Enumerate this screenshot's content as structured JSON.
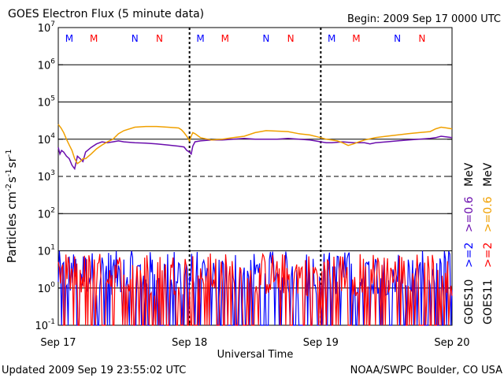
{
  "chart_data": {
    "type": "line",
    "title": "GOES Electron Flux (5 minute data)",
    "begin_label": "Begin: 2009 Sep 17 0000 UTC",
    "xlabel": "Universal Time",
    "ylabel_html": "Particles cm-2 s-1 sr-1",
    "ylabel_parts": {
      "base": "Particles cm",
      "e1": "-2",
      "s": "s",
      "e2": "-1",
      "sr": "sr",
      "e3": "-1"
    },
    "yscale": "log",
    "ylim": [
      0.1,
      10000000
    ],
    "xlim": [
      0,
      72
    ],
    "x_unit": "hours since 2009 Sep 17 0000 UTC",
    "y_ticks": [
      {
        "base": "10",
        "exp": "7",
        "value": 10000000
      },
      {
        "base": "10",
        "exp": "6",
        "value": 1000000
      },
      {
        "base": "10",
        "exp": "5",
        "value": 100000
      },
      {
        "base": "10",
        "exp": "4",
        "value": 10000
      },
      {
        "base": "10",
        "exp": "3",
        "value": 1000
      },
      {
        "base": "10",
        "exp": "2",
        "value": 100
      },
      {
        "base": "10",
        "exp": "1",
        "value": 10
      },
      {
        "base": "10",
        "exp": "0",
        "value": 1
      },
      {
        "base": "10",
        "exp": "-1",
        "value": 0.1
      }
    ],
    "x_ticks": [
      {
        "label": "Sep 17",
        "x": 0
      },
      {
        "label": "Sep 18",
        "x": 24
      },
      {
        "label": "Sep 19",
        "x": 48
      },
      {
        "label": "Sep 20",
        "x": 72
      }
    ],
    "dashed_thresholds": [
      1000
    ],
    "local_time_markers": [
      {
        "label": "M",
        "x": 2,
        "color": "#0000ff"
      },
      {
        "label": "M",
        "x": 6.5,
        "color": "#ff0000"
      },
      {
        "label": "N",
        "x": 14,
        "color": "#0000ff"
      },
      {
        "label": "N",
        "x": 18.5,
        "color": "#ff0000"
      },
      {
        "label": "M",
        "x": 26,
        "color": "#0000ff"
      },
      {
        "label": "M",
        "x": 30.5,
        "color": "#ff0000"
      },
      {
        "label": "N",
        "x": 38,
        "color": "#0000ff"
      },
      {
        "label": "N",
        "x": 42.5,
        "color": "#ff0000"
      },
      {
        "label": "M",
        "x": 50,
        "color": "#0000ff"
      },
      {
        "label": "M",
        "x": 54.5,
        "color": "#ff0000"
      },
      {
        "label": "N",
        "x": 62,
        "color": "#0000ff"
      },
      {
        "label": "N",
        "x": 66.5,
        "color": "#ff0000"
      }
    ],
    "legend": {
      "placement": "right",
      "channels": [
        {
          "text": ">=2 MeV",
          "series": "GOES10 >=2 MeV",
          "color": "#0000ff"
        },
        {
          "text": ">=2 MeV",
          "series": "GOES11 >=2 MeV",
          "color": "#ff0000"
        },
        {
          "text": ">=0.6 MeV",
          "series": "GOES10 >=0.6 MeV",
          "color": "#6a0dad"
        },
        {
          "text": ">=0.6 MeV",
          "series": "GOES11 >=0.6 MeV",
          "color": "#f0a000"
        }
      ],
      "satellites": [
        "GOES10",
        "GOES11"
      ],
      "channel_labels": {
        "gt2": ">=2",
        "gt06": ">=0.6",
        "mev": "MeV"
      }
    },
    "series": [
      {
        "name": "GOES10 >=0.6 MeV",
        "color": "#6a0dad",
        "x": [
          0,
          0.3,
          0.6,
          1,
          1.5,
          2,
          2.5,
          3,
          3.5,
          4,
          4.5,
          5,
          6,
          7,
          8,
          9,
          10,
          11,
          12,
          14,
          16,
          18,
          20,
          22,
          23,
          23.5,
          24,
          24.3,
          24.6,
          25,
          26,
          28,
          30,
          32,
          34,
          36,
          38,
          40,
          42,
          44,
          46,
          47,
          48,
          49,
          50,
          52,
          54,
          56,
          57,
          58,
          60,
          62,
          64,
          66,
          68,
          69,
          70,
          71,
          72
        ],
        "y": [
          6000,
          4000,
          5000,
          4500,
          3500,
          3000,
          2000,
          1600,
          3500,
          3000,
          2500,
          4500,
          6000,
          7500,
          8500,
          8000,
          8500,
          9000,
          8500,
          8000,
          7800,
          7500,
          7000,
          6500,
          6200,
          5000,
          4500,
          4000,
          6500,
          8500,
          9000,
          9500,
          9500,
          10000,
          10500,
          10000,
          10000,
          10000,
          10500,
          10000,
          9500,
          9000,
          8500,
          8000,
          8000,
          8500,
          8000,
          8000,
          7500,
          8000,
          8500,
          9000,
          9500,
          10000,
          10500,
          11000,
          12000,
          11500,
          11000
        ]
      },
      {
        "name": "GOES11 >=0.6 MeV",
        "color": "#f0a000",
        "x": [
          0,
          0.5,
          1,
          1.5,
          2,
          2.5,
          3,
          3.5,
          4,
          4.5,
          5,
          6,
          7,
          8,
          9,
          10,
          11,
          12,
          14,
          16,
          18,
          20,
          22,
          22.5,
          23,
          23.5,
          24,
          24.3,
          24.6,
          25,
          26,
          28,
          30,
          32,
          34,
          36,
          38,
          40,
          42,
          44,
          46,
          48,
          49,
          50,
          51,
          52,
          53,
          54,
          55,
          56,
          58,
          60,
          62,
          64,
          66,
          68,
          69,
          70,
          71,
          72
        ],
        "y": [
          25000,
          20000,
          15000,
          10000,
          7000,
          5000,
          3000,
          2200,
          2500,
          3000,
          3000,
          4000,
          5500,
          7000,
          8500,
          10000,
          14000,
          17000,
          21000,
          22000,
          22000,
          21000,
          20000,
          18000,
          15000,
          12000,
          9000,
          12000,
          15000,
          14000,
          11000,
          9500,
          10000,
          11000,
          12000,
          15000,
          17000,
          16500,
          16000,
          14000,
          13000,
          11000,
          10000,
          9500,
          9000,
          8000,
          6800,
          7500,
          8500,
          9500,
          11000,
          12000,
          13000,
          14000,
          15000,
          16000,
          19000,
          21000,
          20000,
          19000
        ]
      },
      {
        "name": "GOES10 >=2 MeV",
        "color": "#0000ff",
        "style": "noisy-spikes",
        "typical_range": [
          0.1,
          10
        ]
      },
      {
        "name": "GOES11 >=2 MeV",
        "color": "#ff0000",
        "style": "noisy-spikes",
        "typical_range": [
          0.1,
          9
        ]
      }
    ]
  },
  "footer": {
    "updated": "Updated 2009 Sep 19 23:55:02 UTC",
    "credit": "NOAA/SWPC Boulder, CO USA"
  }
}
